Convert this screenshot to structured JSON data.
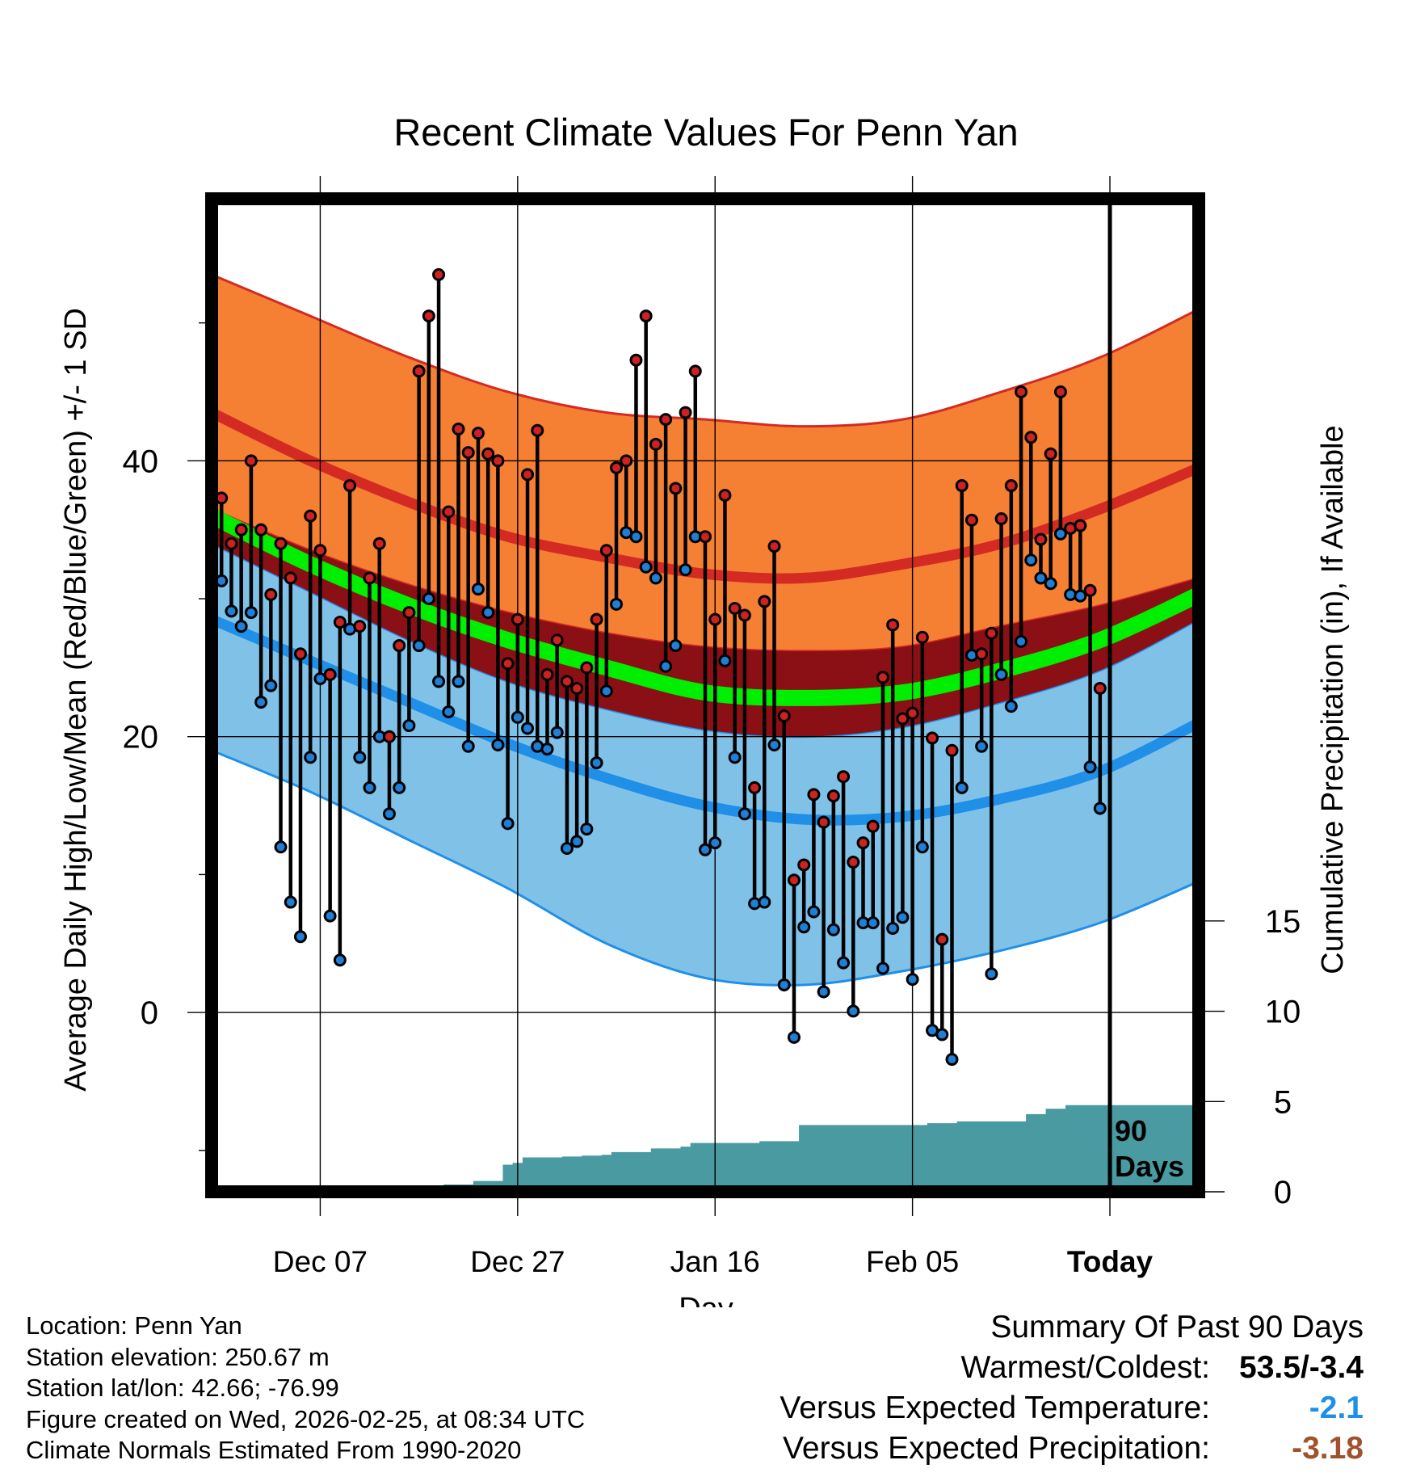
{
  "chart_data": {
    "type": "line",
    "title": "Recent Climate Values For Penn Yan",
    "xlabel": "Day",
    "ylabel": "Average Daily High/Low/Mean (Red/Blue/Green) +/- 1 SD",
    "y2label": "Cumulative Precipitation (in), If Available",
    "xticks": [
      "Dec 07",
      "Dec 27",
      "Jan 16",
      "Feb 05",
      "Today"
    ],
    "xtick_days": [
      10,
      30,
      50,
      70,
      90
    ],
    "yticks": [
      0,
      20,
      40
    ],
    "ylim": [
      -13,
      59
    ],
    "y2ticks": [
      0,
      5,
      10,
      15
    ],
    "y2lim": [
      0,
      55
    ],
    "x_range": [
      -1,
      99
    ],
    "today_day": 90,
    "today_label": "90 Days",
    "normals": {
      "days": [
        -1,
        9,
        19,
        29,
        39,
        49,
        59,
        69,
        79,
        89,
        99
      ],
      "high": [
        43.5,
        40.0,
        37.0,
        34.5,
        33.0,
        31.8,
        31.5,
        32.5,
        34.0,
        36.5,
        39.5
      ],
      "high_plus_sd": [
        53.5,
        50.5,
        47.5,
        45.0,
        43.5,
        43.0,
        42.5,
        43.0,
        45.0,
        47.5,
        51.0
      ],
      "low": [
        28.5,
        25.5,
        22.5,
        19.5,
        17.0,
        15.0,
        14.0,
        14.2,
        15.5,
        17.5,
        21.0
      ],
      "low_minus_sd": [
        19.0,
        16.0,
        12.5,
        9.0,
        5.0,
        2.5,
        2.0,
        3.0,
        4.5,
        6.5,
        9.5
      ],
      "mean": [
        36.0,
        32.5,
        29.5,
        27.0,
        25.0,
        23.2,
        22.8,
        23.2,
        24.8,
        27.0,
        30.3
      ],
      "mean_band_upper": [
        36.5,
        33.5,
        31.0,
        29.0,
        27.5,
        26.5,
        26.2,
        26.5,
        28.0,
        29.5,
        31.5
      ],
      "mean_band_lower": [
        34.0,
        30.5,
        27.0,
        24.0,
        22.0,
        20.5,
        20.0,
        20.7,
        22.5,
        24.8,
        28.5
      ]
    },
    "series": [
      {
        "name": "Daily High",
        "color": "#cc2222",
        "values": [
          37.3,
          34.0,
          35.0,
          40.0,
          35.0,
          30.3,
          34.0,
          31.5,
          26.0,
          36.0,
          33.5,
          24.5,
          28.3,
          38.2,
          28.0,
          31.5,
          34.0,
          20.0,
          26.6,
          29.0,
          46.5,
          50.5,
          53.5,
          36.3,
          42.3,
          40.6,
          42.0,
          40.5,
          40.0,
          25.3,
          28.5,
          39.0,
          42.2,
          24.5,
          27.0,
          24.0,
          23.5,
          25.0,
          28.5,
          33.5,
          39.5,
          40.0,
          47.3,
          50.5,
          41.2,
          43.0,
          38.0,
          43.5,
          46.5,
          34.5,
          28.5,
          37.5,
          29.3,
          28.8,
          16.3,
          29.8,
          33.8,
          21.5,
          9.6,
          10.7,
          15.8,
          13.8,
          15.7,
          17.1,
          10.9,
          12.3,
          13.5,
          24.3,
          28.1,
          21.3,
          21.7,
          27.2,
          19.9,
          5.3,
          19.0,
          38.2,
          35.7,
          26.0,
          27.5,
          35.8,
          38.2,
          45.0,
          41.7,
          34.3,
          40.5,
          45.0,
          35.1,
          35.3,
          30.6,
          23.5
        ]
      },
      {
        "name": "Daily Low",
        "color": "#1f7fd6",
        "values": [
          31.3,
          29.1,
          28.0,
          29.0,
          22.5,
          23.7,
          12.0,
          8.0,
          5.5,
          18.5,
          24.2,
          7.0,
          3.8,
          27.8,
          18.5,
          16.3,
          20.0,
          14.4,
          16.3,
          20.8,
          26.6,
          30.0,
          24.0,
          21.8,
          24.0,
          19.3,
          30.7,
          29.0,
          19.4,
          13.7,
          21.4,
          20.6,
          19.3,
          19.1,
          20.3,
          11.9,
          12.4,
          13.3,
          18.1,
          23.3,
          29.6,
          34.8,
          34.5,
          32.3,
          31.5,
          25.1,
          26.6,
          32.1,
          34.5,
          11.8,
          12.3,
          25.5,
          18.5,
          14.4,
          7.9,
          8.0,
          19.4,
          2.0,
          -1.8,
          6.2,
          7.3,
          1.5,
          6.0,
          3.6,
          0.1,
          6.5,
          6.5,
          3.2,
          6.1,
          6.9,
          2.4,
          12.0,
          -1.3,
          -1.6,
          -3.4,
          16.3,
          25.9,
          19.3,
          2.8,
          24.5,
          22.2,
          26.9,
          32.8,
          31.5,
          31.1,
          34.7,
          30.3,
          30.2,
          17.8,
          14.8
        ]
      },
      {
        "name": "Cumulative Precipitation (in)",
        "color": "#4a9aa1",
        "values": [
          0,
          0,
          0,
          0,
          0,
          0,
          0,
          0,
          0,
          0,
          0,
          0,
          0,
          0,
          0,
          0,
          0,
          0,
          0,
          0,
          0,
          0,
          0.3,
          0.4,
          0.4,
          0.4,
          0.6,
          0.6,
          0.6,
          1.5,
          1.6,
          1.9,
          1.9,
          1.9,
          1.9,
          1.95,
          1.95,
          2.0,
          2.0,
          2.05,
          2.2,
          2.2,
          2.2,
          2.2,
          2.4,
          2.4,
          2.4,
          2.5,
          2.7,
          2.7,
          2.7,
          2.7,
          2.7,
          2.7,
          2.7,
          2.8,
          2.8,
          2.8,
          2.8,
          3.7,
          3.7,
          3.7,
          3.7,
          3.7,
          3.7,
          3.7,
          3.7,
          3.7,
          3.7,
          3.7,
          3.7,
          3.7,
          3.8,
          3.8,
          3.8,
          3.9,
          3.9,
          3.9,
          3.9,
          3.9,
          3.9,
          3.9,
          4.3,
          4.3,
          4.6,
          4.6,
          4.8,
          4.8,
          4.8,
          4.8
        ]
      }
    ]
  },
  "info": {
    "location": "Location: Penn Yan",
    "elevation": "Station elevation: 250.67 m",
    "latlon": "Station lat/lon: 42.66; -76.99",
    "created": "Figure created on Wed, 2026-02-25, at 08:34 UTC",
    "normals": "Climate Normals Estimated From 1990-2020"
  },
  "summary": {
    "heading": "Summary Of Past 90 Days",
    "warmest_label": "Warmest/Coldest:",
    "warmest_value": "53.5/-3.4",
    "temp_label": "Versus Expected Temperature:",
    "temp_value": "-2.1",
    "temp_color": "#1f8fe8",
    "precip_label": "Versus Expected Precipitation:",
    "precip_value": "-3.18",
    "precip_color": "#a0522d"
  }
}
